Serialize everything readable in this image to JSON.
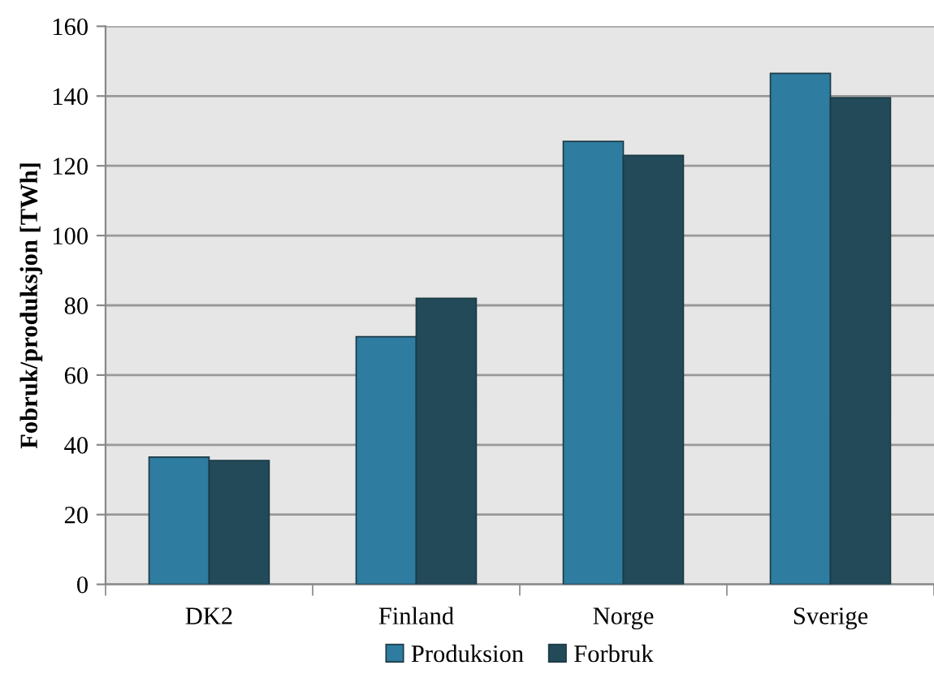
{
  "chart_data": {
    "type": "bar",
    "ylabel": "Fobruk/produksjon [TWh]",
    "categories": [
      "DK2",
      "Finland",
      "Norge",
      "Sverige"
    ],
    "series": [
      {
        "name": "Produksion",
        "color": "#2e7ca0",
        "values": [
          36.5,
          71,
          127,
          146.5
        ]
      },
      {
        "name": "Forbruk",
        "color": "#234a58",
        "values": [
          35.5,
          82,
          123,
          139.5
        ]
      }
    ],
    "ylim": [
      0,
      160
    ],
    "yticks": [
      0,
      20,
      40,
      60,
      80,
      100,
      120,
      140,
      160
    ],
    "grid": "y",
    "legend": "bottom"
  }
}
